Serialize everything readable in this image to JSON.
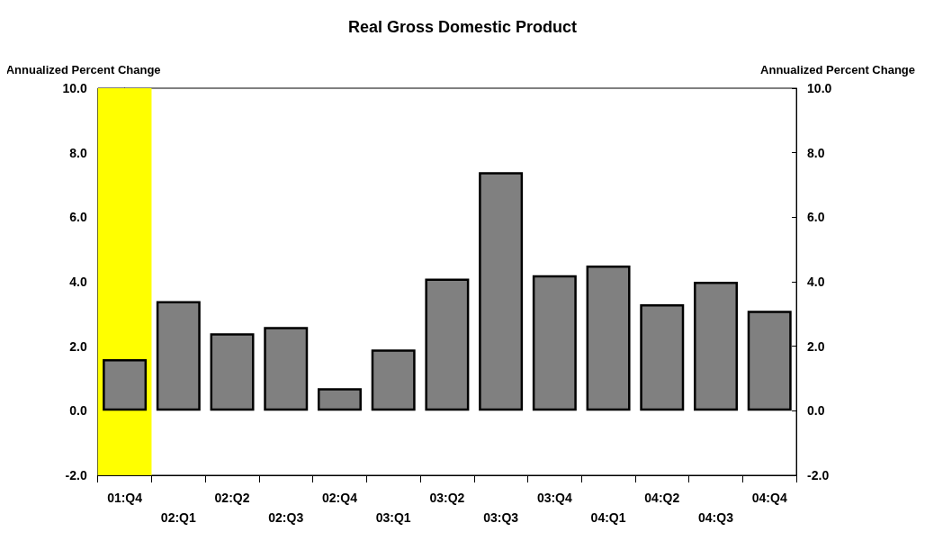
{
  "chart_data": {
    "type": "bar",
    "title": "Real Gross Domestic Product",
    "ylabel": "Annualized Percent Change",
    "y2label": "Annualized Percent Change",
    "categories": [
      "01:Q4",
      "02:Q1",
      "02:Q2",
      "02:Q3",
      "02:Q4",
      "03:Q1",
      "03:Q2",
      "03:Q3",
      "03:Q4",
      "04:Q1",
      "04:Q2",
      "04:Q3",
      "04:Q4"
    ],
    "values": [
      1.6,
      3.4,
      2.4,
      2.6,
      0.7,
      1.9,
      4.1,
      7.4,
      4.2,
      4.5,
      3.3,
      4.0,
      3.1
    ],
    "color": "#808080",
    "ylim": [
      -2,
      10
    ],
    "yticks": [
      {
        "value": -2,
        "label": "-2.0"
      },
      {
        "value": 0,
        "label": "0.0"
      },
      {
        "value": 2,
        "label": "2.0"
      },
      {
        "value": 4,
        "label": "4.0"
      },
      {
        "value": 6,
        "label": "6.0"
      },
      {
        "value": 8,
        "label": "8.0"
      },
      {
        "value": 10,
        "label": "10.0"
      }
    ],
    "y2lim": [
      -2,
      10
    ],
    "y2ticks": [
      {
        "value": -2,
        "label": "-2.0"
      },
      {
        "value": 0,
        "label": "0.0"
      },
      {
        "value": 2,
        "label": "2.0"
      },
      {
        "value": 4,
        "label": "4.0"
      },
      {
        "value": 6,
        "label": "6.0"
      },
      {
        "value": 8,
        "label": "8.0"
      },
      {
        "value": 10,
        "label": "10.0"
      }
    ],
    "bands": [
      {
        "axis": "x",
        "from": "01:Q4",
        "to": "01:Q4",
        "color": "#ffff00"
      }
    ]
  }
}
